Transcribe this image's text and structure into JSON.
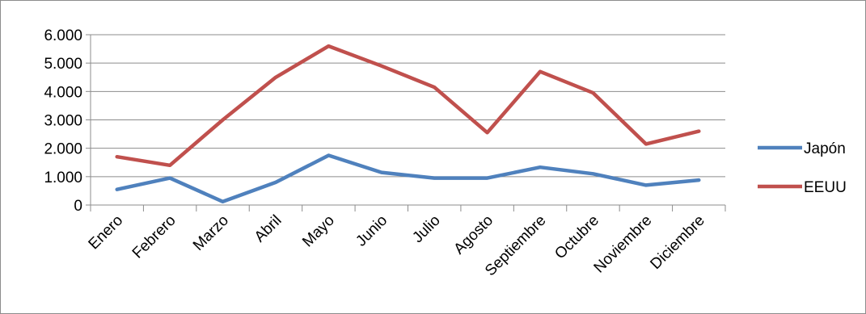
{
  "chart_data": {
    "type": "line",
    "categories": [
      "Enero",
      "Febrero",
      "Marzo",
      "Abril",
      "Mayo",
      "Junio",
      "Julio",
      "Agosto",
      "Septiembre",
      "Octubre",
      "Noviembre",
      "Diciembre"
    ],
    "series": [
      {
        "name": "Japón",
        "color": "#4F81BD",
        "values": [
          550,
          950,
          120,
          800,
          1750,
          1150,
          950,
          950,
          1330,
          1100,
          700,
          880
        ]
      },
      {
        "name": "EEUU",
        "color": "#C0504D",
        "values": [
          1700,
          1400,
          3000,
          4500,
          5600,
          4900,
          4150,
          2550,
          4700,
          3950,
          2150,
          2600
        ]
      }
    ],
    "y_ticks": [
      "0",
      "1.000",
      "2.000",
      "3.000",
      "4.000",
      "5.000",
      "6.000"
    ],
    "ylim": [
      0,
      6000
    ],
    "grid": true,
    "gridline_color": "#8c8c8c",
    "legend_position": "right",
    "title": "",
    "xlabel": "",
    "ylabel": ""
  }
}
